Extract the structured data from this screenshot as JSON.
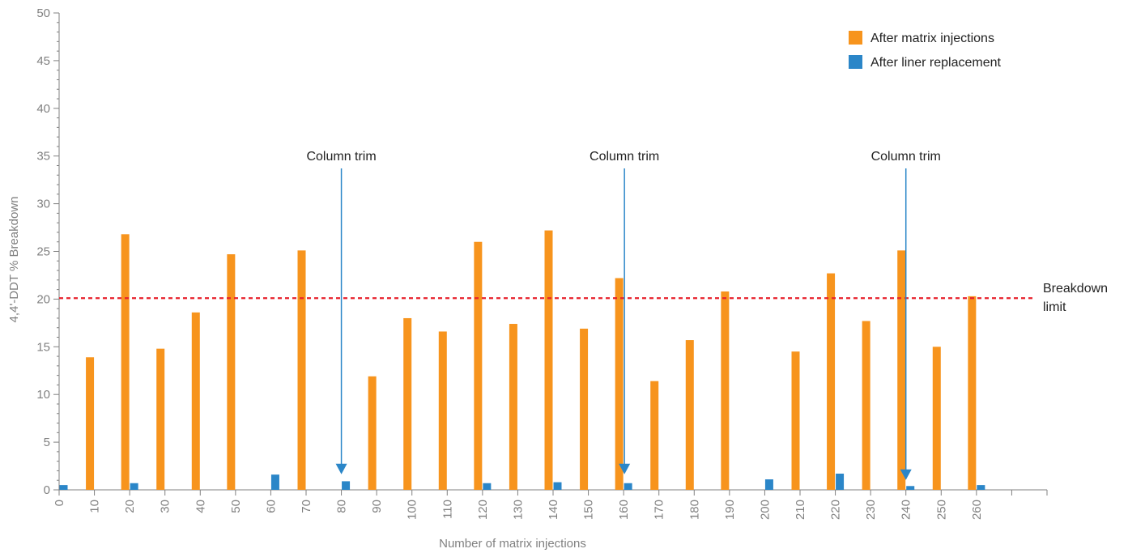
{
  "chart_data": {
    "type": "bar",
    "title": "",
    "xlabel": "Number of matrix injections",
    "ylabel": "4,4'-DDT % Breakdown",
    "ylim": [
      0,
      50
    ],
    "yticks": [
      0,
      5,
      10,
      15,
      20,
      25,
      30,
      35,
      40,
      45,
      50
    ],
    "xlim": [
      0,
      280
    ],
    "xticks": [
      0,
      10,
      20,
      30,
      40,
      50,
      60,
      70,
      80,
      90,
      100,
      110,
      120,
      130,
      140,
      150,
      160,
      170,
      180,
      190,
      200,
      210,
      220,
      230,
      240,
      250,
      260
    ],
    "grid": false,
    "legend_position": "top-right",
    "series": [
      {
        "name": "After matrix injections",
        "color": "#F7941D",
        "x": [
          10,
          20,
          30,
          40,
          50,
          70,
          90,
          100,
          110,
          120,
          130,
          140,
          150,
          160,
          170,
          180,
          190,
          210,
          220,
          230,
          240,
          250,
          260
        ],
        "values": [
          13.9,
          26.8,
          14.8,
          18.6,
          24.7,
          25.1,
          11.9,
          18.0,
          16.6,
          26.0,
          17.4,
          27.2,
          16.9,
          22.2,
          11.4,
          15.7,
          20.8,
          14.5,
          22.7,
          17.7,
          25.1,
          15.0,
          20.3
        ]
      },
      {
        "name": "After liner replacement",
        "color": "#2B86C8",
        "x": [
          0,
          20,
          60,
          80,
          120,
          140,
          160,
          200,
          220,
          240,
          260
        ],
        "values": [
          0.5,
          0.7,
          1.6,
          0.9,
          0.7,
          0.8,
          0.7,
          1.1,
          1.7,
          0.4,
          0.5
        ]
      }
    ],
    "reference_line": {
      "y": 20.1,
      "label_line1": "Breakdown",
      "label_line2": "limit",
      "color": "#E8212B"
    },
    "annotations": [
      {
        "text": "Column trim",
        "x": 80,
        "y_top": 33.7,
        "y_bottom": 2.4,
        "color": "#2B86C8"
      },
      {
        "text": "Column trim",
        "x": 160,
        "y_top": 33.7,
        "y_bottom": 2.4,
        "color": "#2B86C8"
      },
      {
        "text": "Column trim",
        "x": 240,
        "y_top": 33.7,
        "y_bottom": 1.8,
        "color": "#2B86C8"
      }
    ],
    "axis_color": "#808080"
  }
}
